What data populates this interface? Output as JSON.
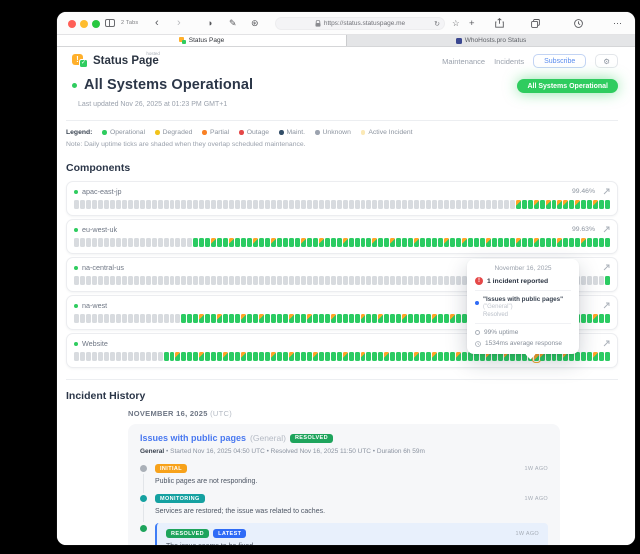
{
  "browser": {
    "tabs_label": "2 Tabs",
    "url": "https://status.statuspage.me",
    "tabs": [
      {
        "title": "Status Page"
      },
      {
        "title": "WhoHosts.pro Status"
      }
    ],
    "glyphs": {
      "back": "‹",
      "forward": "›",
      "appearance": "◑",
      "pen": "✎",
      "extensions": "⊛",
      "refresh": "↻",
      "star": "☆",
      "new_tab": "+",
      "more": "⋯"
    }
  },
  "header": {
    "brand": "Status Page",
    "brand_superscript": "hosted",
    "nav": [
      "Maintenance",
      "Incidents"
    ],
    "subscribe_label": "Subscribe",
    "gear_glyph": "⚙"
  },
  "status": {
    "title": "All Systems Operational",
    "last_updated": "Last updated Nov 26, 2025 at 01:23 PM GMT+1",
    "badge": "All Systems Operational",
    "accent_color": "#2fcc5f"
  },
  "legend": {
    "label": "Legend:",
    "items": [
      {
        "label": "Operational",
        "color": "#2fcc5f"
      },
      {
        "label": "Degraded",
        "color": "#f2c31b"
      },
      {
        "label": "Partial",
        "color": "#f98125"
      },
      {
        "label": "Outage",
        "color": "#e54848"
      },
      {
        "label": "Maint.",
        "color": "#334e68"
      },
      {
        "label": "Unknown",
        "color": "#9ca3af"
      },
      {
        "label": "Active Incident",
        "color": "#fbe9b6"
      }
    ],
    "note": "Note: Daily uptime ticks are shaded when they overlap scheduled maintenance."
  },
  "components": {
    "heading": "Components",
    "tick_colors": {
      "U": "#d8dbdf",
      "O": "#2bcb62",
      "M": "#ffa428 over #2bcb62",
      "H": "highlighted hover tick"
    },
    "items": [
      {
        "name": "apac-east-jp",
        "uptime": "99.46%",
        "ticks": [
          "74U",
          "MOOMOMOMMO",
          "MOOMOO"
        ]
      },
      {
        "name": "eu-west-uk",
        "uptime": "99.63%",
        "ticks": [
          "20U",
          "OOOMOOMOOO",
          "MOOMOOOOMO",
          "OMOOOMOOOO",
          "MOOMOOOMOO",
          "OOMOOMOOOM",
          "OOOOMOOMOO",
          "OMOOOMOOOO"
        ]
      },
      {
        "name": "na-central-us",
        "uptime": "",
        "ticks": [
          "89U",
          "O"
        ]
      },
      {
        "name": "na-west",
        "uptime": "",
        "ticks": [
          "18U",
          "OOOMOOMOOO",
          "MOOMOOOOMO",
          "OMOOOMOOOO",
          "MOOMOOOMOO",
          "OOMOOMOOOM",
          "OOOOMOOMOO",
          "OMOOOMOOOM",
          "OO"
        ]
      },
      {
        "name": "Website",
        "uptime": "",
        "ticks": [
          "15U",
          "OOMOOOMOOO",
          "MOOMOOOOMO",
          "OMOOOMOOOO",
          "MOOMOOOMOO",
          "OOMOOMOOOM",
          "OOOOMOOMOO",
          "OMHMOOOMOO",
          "OOMOO"
        ]
      }
    ]
  },
  "tooltip": {
    "date": "November 16, 2025",
    "incident_count": "1 incident reported",
    "incident_title": "\"Issues with public pages\"",
    "incident_group": "(\"General\")",
    "incident_status": "Resolved",
    "uptime": "99% uptime",
    "response": "1534ms average response"
  },
  "incident_history": {
    "heading": "Incident History",
    "date_label": "NOVEMBER 16, 2025",
    "date_suffix": "(UTC)",
    "incident": {
      "title": "Issues with public pages",
      "group": "(General)",
      "status_badge": "RESOLVED",
      "status_badge_color": "#1ea45c",
      "meta_bold": "General",
      "meta": " • Started Nov 16, 2025 04:50 UTC • Resolved Nov 16, 2025 11:50 UTC • Duration 6h 59m",
      "updates": [
        {
          "badges": [
            {
              "label": "INITIAL",
              "color": "#f7a21b"
            }
          ],
          "dot": "#aab0b8",
          "time": "1W AGO",
          "message": "Public pages are not responding.",
          "latest": false
        },
        {
          "badges": [
            {
              "label": "MONITORING",
              "color": "#15a1a1"
            }
          ],
          "dot": "#15a1a1",
          "time": "1W AGO",
          "message": "Services are restored; the issue was related to caches.",
          "latest": false
        },
        {
          "badges": [
            {
              "label": "RESOLVED",
              "color": "#1ea45c"
            },
            {
              "label": "LATEST",
              "color": "#2f6bf6"
            }
          ],
          "dot": "#1ea45c",
          "time": "1W AGO",
          "message": "The issue seems to be fixed.",
          "latest": true
        }
      ]
    }
  }
}
